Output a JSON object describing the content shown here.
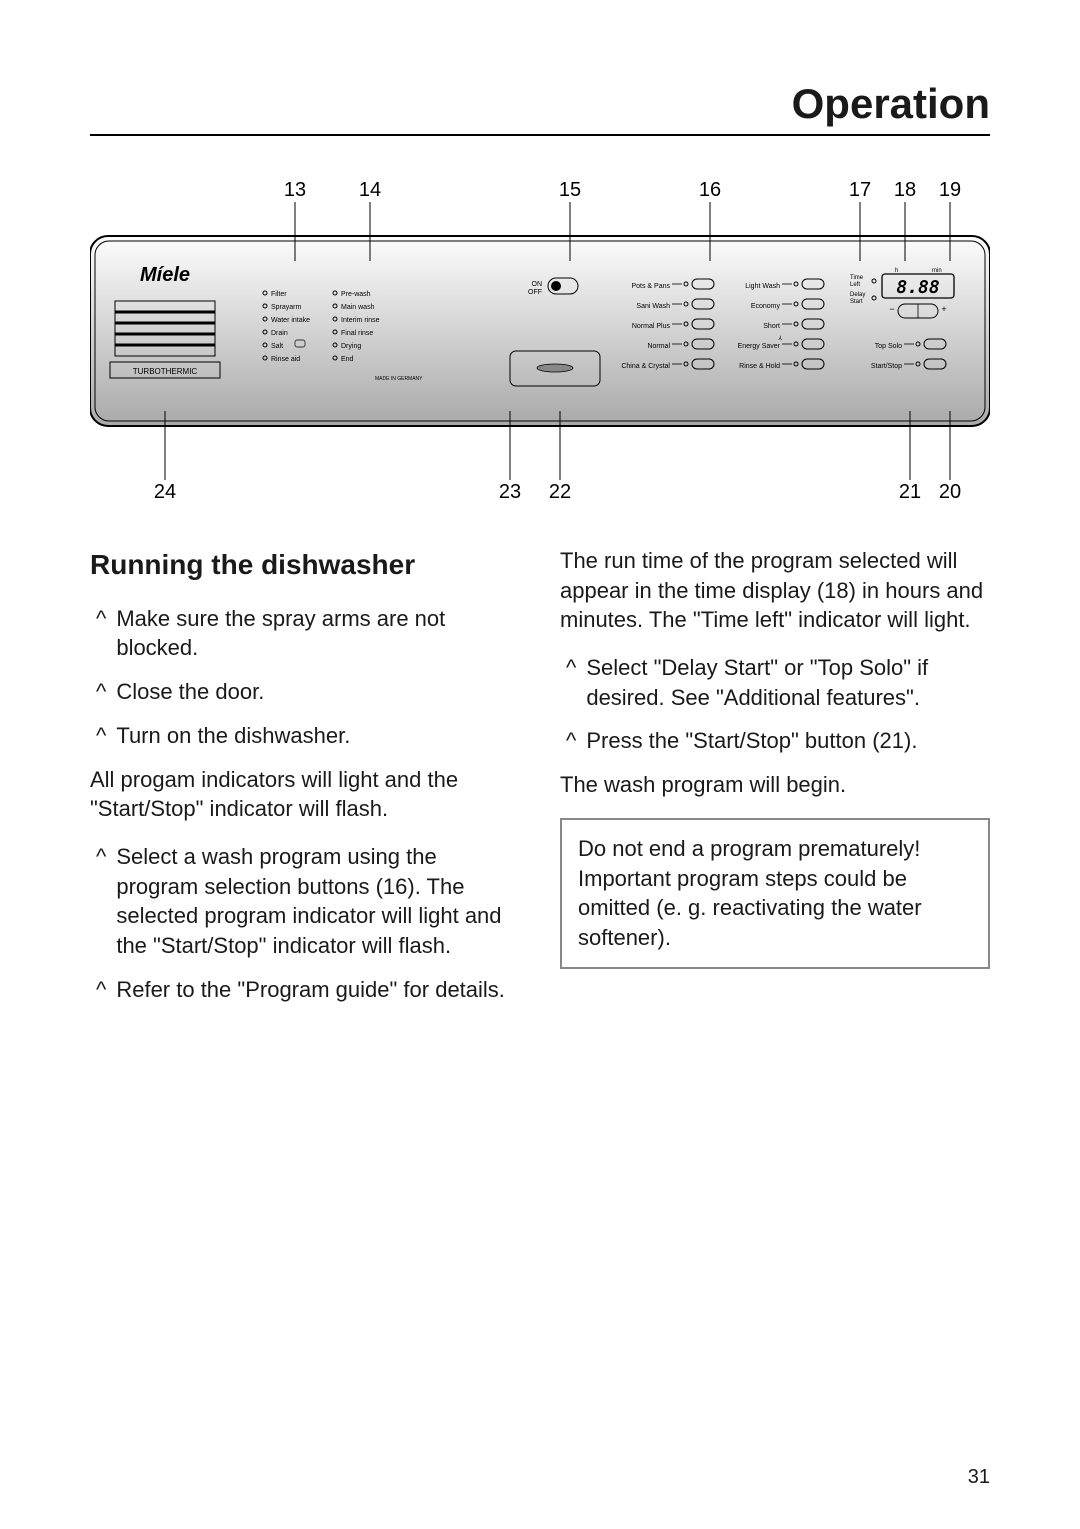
{
  "header": {
    "title": "Operation"
  },
  "page_number": "31",
  "diagram": {
    "top_labels": [
      "13",
      "14",
      "15",
      "16",
      "17",
      "18",
      "19"
    ],
    "bottom_labels": [
      "24",
      "23",
      "22",
      "21",
      "20"
    ],
    "brand": "Míele",
    "subbrand": "TURBOTHERMIC",
    "made_in": "MADE IN GERMANY",
    "indicators_col1": [
      "Filter",
      "Sprayarm",
      "Water intake",
      "Drain",
      "Salt",
      "Rinse aid"
    ],
    "indicators_col2": [
      "Pre-wash",
      "Main wash",
      "Interim rinse",
      "Final rinse",
      "Drying",
      "End"
    ],
    "on_off": "ON\nOFF",
    "programs_col1": [
      "Pots & Pans",
      "Sani Wash",
      "Normal Plus",
      "Normal",
      "China & Crystal"
    ],
    "programs_col2": [
      "Light Wash",
      "Economy",
      "Short",
      "Energy Saver",
      "Rinse & Hold"
    ],
    "right_col": [
      "Top Solo",
      "Start/Stop"
    ],
    "time_left": "Time\nLeft",
    "delay_start": "Delay\nStart",
    "display_value": "8.88",
    "h_label": "h",
    "min_label": "min",
    "minus": "−",
    "plus": "+",
    "colors": {
      "panel_light": "#fdfdfd",
      "panel_dark": "#a9a9a9",
      "stroke": "#000000",
      "text": "#000000"
    }
  },
  "left_column": {
    "heading": "Running the dishwasher",
    "steps_a": [
      "Make sure the spray arms are not blocked.",
      "Close the door.",
      "Turn on the dishwasher."
    ],
    "para_a": "All progam indicators will light and the \"Start/Stop\" indicator will flash.",
    "steps_b": [
      "Select a wash program using the program selection buttons (16). The selected program indicator will light and the \"Start/Stop\" indicator will flash.",
      "Refer to the \"Program guide\" for details."
    ]
  },
  "right_column": {
    "para_a": "The run time of the program selected will appear in the time display (18) in hours and minutes. The \"Time left\" indicator will light.",
    "steps": [
      "Select \"Delay Start\" or \"Top Solo\" if desired. See \"Additional features\".",
      "Press the \"Start/Stop\" button (21)."
    ],
    "para_b": "The wash program will begin.",
    "callout": "Do not end a program prematurely! Important program steps could be omitted (e. g. reactivating the water softener)."
  },
  "caret": "^"
}
